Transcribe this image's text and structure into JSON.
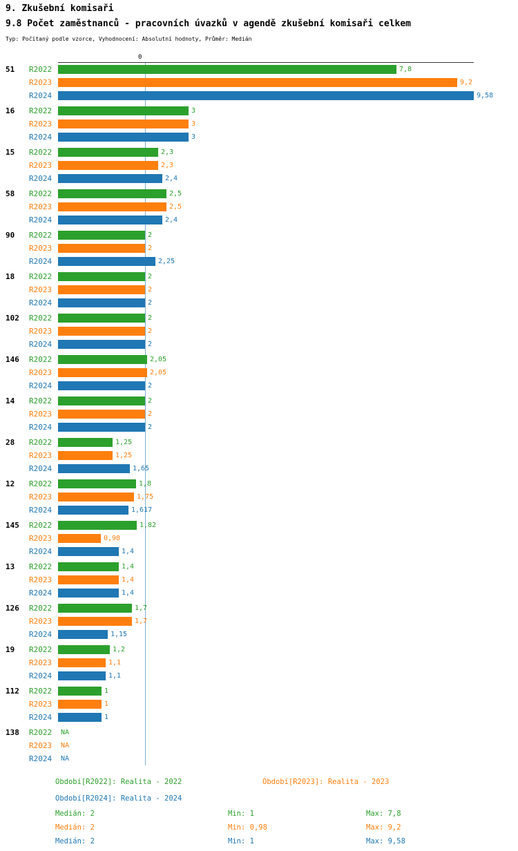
{
  "header": {
    "title": "9. Zkušební komisaři",
    "subtitle": "9.8 Počet zaměstnanců - pracovních úvazků v agendě zkušební komisaři celkem",
    "typeline": "Typ: Počítaný podle vzorce, Vyhodnocení: Absolutní hodnoty, Průměr: Medián"
  },
  "chart_data": {
    "type": "bar",
    "orientation": "horizontal",
    "axis_origin_label": "0",
    "x_max": 9.58,
    "median_reference_value": 2,
    "median_line_color": "#7fafd0",
    "grid": false,
    "legend_position": "bottom",
    "series": [
      {
        "name": "R2022",
        "color": "#2ca02c",
        "legend_label": "Období[R2022]: Realita - 2022",
        "median_label": "Medián: 2",
        "min_label": "Min: 1",
        "max_label": "Max: 7,8"
      },
      {
        "name": "R2023",
        "color": "#ff7f0e",
        "legend_label": "Období[R2023]: Realita - 2023",
        "median_label": "Medián: 2",
        "min_label": "Min: 0,98",
        "max_label": "Max: 9,2"
      },
      {
        "name": "R2024",
        "color": "#1f77b4",
        "legend_label": "Období[R2024]: Realita - 2024",
        "median_label": "Medián: 2",
        "min_label": "Min: 1",
        "max_label": "Max: 9,58"
      }
    ],
    "groups": [
      {
        "label": "51",
        "values": [
          "7,8",
          "9,2",
          "9,58"
        ]
      },
      {
        "label": "16",
        "values": [
          "3",
          "3",
          "3"
        ]
      },
      {
        "label": "15",
        "values": [
          "2,3",
          "2,3",
          "2,4"
        ]
      },
      {
        "label": "58",
        "values": [
          "2,5",
          "2,5",
          "2,4"
        ]
      },
      {
        "label": "90",
        "values": [
          "2",
          "2",
          "2,25"
        ]
      },
      {
        "label": "18",
        "values": [
          "2",
          "2",
          "2"
        ]
      },
      {
        "label": "102",
        "values": [
          "2",
          "2",
          "2"
        ]
      },
      {
        "label": "146",
        "values": [
          "2,05",
          "2,05",
          "2"
        ]
      },
      {
        "label": "14",
        "values": [
          "2",
          "2",
          "2"
        ]
      },
      {
        "label": "28",
        "values": [
          "1,25",
          "1,25",
          "1,65"
        ]
      },
      {
        "label": "12",
        "values": [
          "1,8",
          "1,75",
          "1,617"
        ]
      },
      {
        "label": "145",
        "values": [
          "1,82",
          "0,98",
          "1,4"
        ]
      },
      {
        "label": "13",
        "values": [
          "1,4",
          "1,4",
          "1,4"
        ]
      },
      {
        "label": "126",
        "values": [
          "1,7",
          "1,7",
          "1,15"
        ]
      },
      {
        "label": "19",
        "values": [
          "1,2",
          "1,1",
          "1,1"
        ]
      },
      {
        "label": "112",
        "values": [
          "1",
          "1",
          "1"
        ]
      },
      {
        "label": "138",
        "values": [
          "NA",
          "NA",
          "NA"
        ]
      }
    ]
  }
}
